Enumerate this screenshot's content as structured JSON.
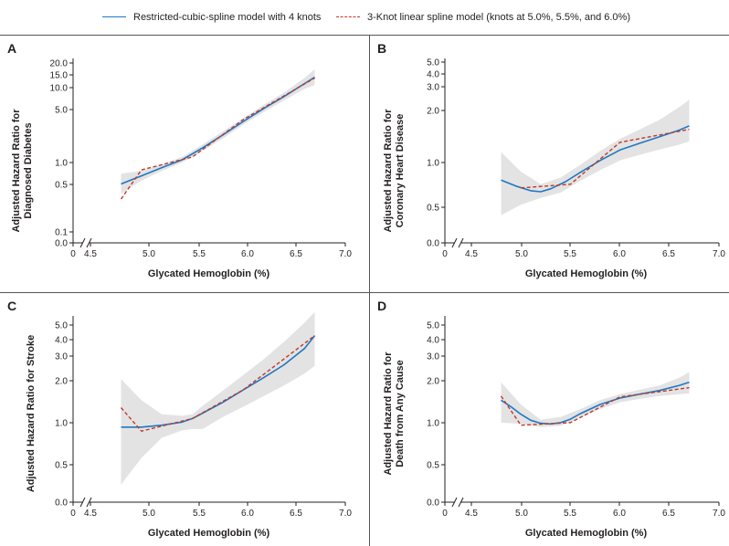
{
  "legend": {
    "solid_label": "Restricted-cubic-spline model with 4 knots",
    "dashed_label": "3-Knot linear spline model (knots at 5.0%, 5.5%, and 6.0%)"
  },
  "colors": {
    "spline": "#1f77c2",
    "linear": "#c0392b",
    "band": "#e3e3e3"
  },
  "chart_data": [
    {
      "panel": "A",
      "type": "line",
      "xlabel": "Glycated Hemoglobin (%)",
      "ylabel": [
        "Adjusted Hazard Ratio for",
        "Diagnosed Diabetes"
      ],
      "xticks": [
        "0",
        "4.5",
        "5.0",
        "5.5",
        "6.0",
        "6.5",
        "7.0"
      ],
      "yticks": [
        "0.0",
        "0.1",
        "0.5",
        "1.0",
        "5.0",
        "10.0",
        "15.0",
        "20.0"
      ],
      "y_scale": "log",
      "xlim": [
        4.5,
        7.0
      ],
      "series": [
        {
          "style": "solid",
          "points": [
            [
              4.8,
              0.45
            ],
            [
              5.0,
              0.58
            ],
            [
              5.2,
              0.75
            ],
            [
              5.4,
              0.96
            ],
            [
              5.6,
              1.4
            ],
            [
              5.8,
              2.1
            ],
            [
              6.0,
              3.2
            ],
            [
              6.2,
              4.8
            ],
            [
              6.4,
              7.0
            ],
            [
              6.6,
              10.5
            ],
            [
              6.7,
              12.8
            ]
          ]
        },
        {
          "style": "dashed",
          "points": [
            [
              4.8,
              0.28
            ],
            [
              5.0,
              0.7
            ],
            [
              5.5,
              1.05
            ],
            [
              6.0,
              3.4
            ],
            [
              6.7,
              12.5
            ]
          ]
        }
      ],
      "band": {
        "x": [
          4.8,
          5.0,
          5.2,
          5.4,
          5.6,
          5.8,
          6.0,
          6.2,
          6.4,
          6.6,
          6.7
        ],
        "upper": [
          0.62,
          0.68,
          0.83,
          1.05,
          1.55,
          2.35,
          3.55,
          5.4,
          7.9,
          12.5,
          16.5
        ],
        "lower": [
          0.33,
          0.5,
          0.68,
          0.88,
          1.27,
          1.88,
          2.9,
          4.3,
          6.2,
          8.9,
          10.0
        ]
      }
    },
    {
      "panel": "B",
      "type": "line",
      "xlabel": "Glycated Hemoglobin (%)",
      "ylabel": [
        "Adjusted Hazard Ratio for",
        "Coronary Heart Disease"
      ],
      "xticks": [
        "0",
        "4.5",
        "5.0",
        "5.5",
        "6.0",
        "6.5",
        "7.0"
      ],
      "yticks": [
        "0.0",
        "0.5",
        "1.0",
        "2.0",
        "3.0",
        "4.0",
        "5.0"
      ],
      "y_scale": "log",
      "xlim": [
        4.5,
        7.0
      ],
      "series": [
        {
          "style": "solid",
          "points": [
            [
              4.8,
              0.77
            ],
            [
              4.95,
              0.7
            ],
            [
              5.1,
              0.65
            ],
            [
              5.2,
              0.64
            ],
            [
              5.3,
              0.67
            ],
            [
              5.45,
              0.75
            ],
            [
              5.6,
              0.87
            ],
            [
              5.8,
              1.05
            ],
            [
              6.0,
              1.24
            ],
            [
              6.2,
              1.38
            ],
            [
              6.4,
              1.53
            ],
            [
              6.6,
              1.7
            ],
            [
              6.7,
              1.82
            ]
          ]
        },
        {
          "style": "dashed",
          "points": [
            [
              5.0,
              0.68
            ],
            [
              5.5,
              0.72
            ],
            [
              6.0,
              1.4
            ],
            [
              6.7,
              1.72
            ]
          ]
        }
      ],
      "band": {
        "x": [
          4.8,
          5.0,
          5.2,
          5.4,
          5.6,
          5.8,
          6.0,
          6.2,
          6.4,
          6.6,
          6.7
        ],
        "upper": [
          1.2,
          0.88,
          0.72,
          0.8,
          0.98,
          1.22,
          1.48,
          1.72,
          2.0,
          2.45,
          2.75
        ],
        "lower": [
          0.44,
          0.52,
          0.58,
          0.63,
          0.76,
          0.9,
          1.05,
          1.15,
          1.25,
          1.35,
          1.42
        ]
      }
    },
    {
      "panel": "C",
      "type": "line",
      "xlabel": "Glycated Hemoglobin (%)",
      "ylabel": [
        "Adjusted Hazard Ratio for Stroke"
      ],
      "xticks": [
        "0",
        "4.5",
        "5.0",
        "5.5",
        "6.0",
        "6.5",
        "7.0"
      ],
      "yticks": [
        "0.0",
        "0.5",
        "1.0",
        "2.0",
        "3.0",
        "4.0",
        "5.0"
      ],
      "y_scale": "log",
      "xlim": [
        4.5,
        7.0
      ],
      "series": [
        {
          "style": "solid",
          "points": [
            [
              4.8,
              0.93
            ],
            [
              5.0,
              0.93
            ],
            [
              5.2,
              0.96
            ],
            [
              5.4,
              1.01
            ],
            [
              5.5,
              1.07
            ],
            [
              5.6,
              1.17
            ],
            [
              5.8,
              1.4
            ],
            [
              6.0,
              1.72
            ],
            [
              6.2,
              2.1
            ],
            [
              6.4,
              2.6
            ],
            [
              6.6,
              3.4
            ],
            [
              6.7,
              4.2
            ]
          ]
        },
        {
          "style": "dashed",
          "points": [
            [
              4.8,
              1.28
            ],
            [
              5.0,
              0.87
            ],
            [
              5.5,
              1.07
            ],
            [
              6.0,
              1.72
            ],
            [
              6.7,
              4.2
            ]
          ]
        }
      ],
      "band": {
        "x": [
          4.8,
          5.0,
          5.2,
          5.4,
          5.5,
          5.6,
          5.8,
          6.0,
          6.2,
          6.4,
          6.6,
          6.7
        ],
        "upper": [
          2.05,
          1.45,
          1.15,
          1.12,
          1.15,
          1.32,
          1.7,
          2.2,
          2.85,
          3.8,
          5.2,
          6.2
        ],
        "lower": [
          0.36,
          0.56,
          0.78,
          0.88,
          0.9,
          0.9,
          1.1,
          1.3,
          1.55,
          1.85,
          2.25,
          2.55
        ]
      }
    },
    {
      "panel": "D",
      "type": "line",
      "xlabel": "Glycated Hemoglobin (%)",
      "ylabel": [
        "Adjusted Hazard Ratio for",
        "Death from Any Cause"
      ],
      "xticks": [
        "0",
        "4.5",
        "5.0",
        "5.5",
        "6.0",
        "6.5",
        "7.0"
      ],
      "yticks": [
        "0.0",
        "0.5",
        "1.0",
        "2.0",
        "3.0",
        "4.0",
        "5.0"
      ],
      "y_scale": "log",
      "xlim": [
        4.5,
        7.0
      ],
      "series": [
        {
          "style": "solid",
          "points": [
            [
              4.8,
              1.45
            ],
            [
              4.9,
              1.3
            ],
            [
              5.0,
              1.15
            ],
            [
              5.1,
              1.04
            ],
            [
              5.2,
              0.99
            ],
            [
              5.3,
              0.98
            ],
            [
              5.4,
              1.0
            ],
            [
              5.5,
              1.06
            ],
            [
              5.6,
              1.16
            ],
            [
              5.8,
              1.35
            ],
            [
              6.0,
              1.5
            ],
            [
              6.2,
              1.6
            ],
            [
              6.4,
              1.7
            ],
            [
              6.6,
              1.85
            ],
            [
              6.7,
              1.95
            ]
          ]
        },
        {
          "style": "dashed",
          "points": [
            [
              4.8,
              1.55
            ],
            [
              5.0,
              0.96
            ],
            [
              5.5,
              1.0
            ],
            [
              6.0,
              1.53
            ],
            [
              6.7,
              1.78
            ]
          ]
        }
      ],
      "band": {
        "x": [
          4.8,
          5.0,
          5.2,
          5.4,
          5.6,
          5.8,
          6.0,
          6.2,
          6.4,
          6.6,
          6.7
        ],
        "upper": [
          1.95,
          1.35,
          1.05,
          1.1,
          1.25,
          1.45,
          1.6,
          1.72,
          1.85,
          2.1,
          2.3
        ],
        "lower": [
          1.0,
          0.98,
          0.93,
          0.95,
          1.08,
          1.25,
          1.4,
          1.48,
          1.55,
          1.6,
          1.62
        ]
      }
    }
  ]
}
